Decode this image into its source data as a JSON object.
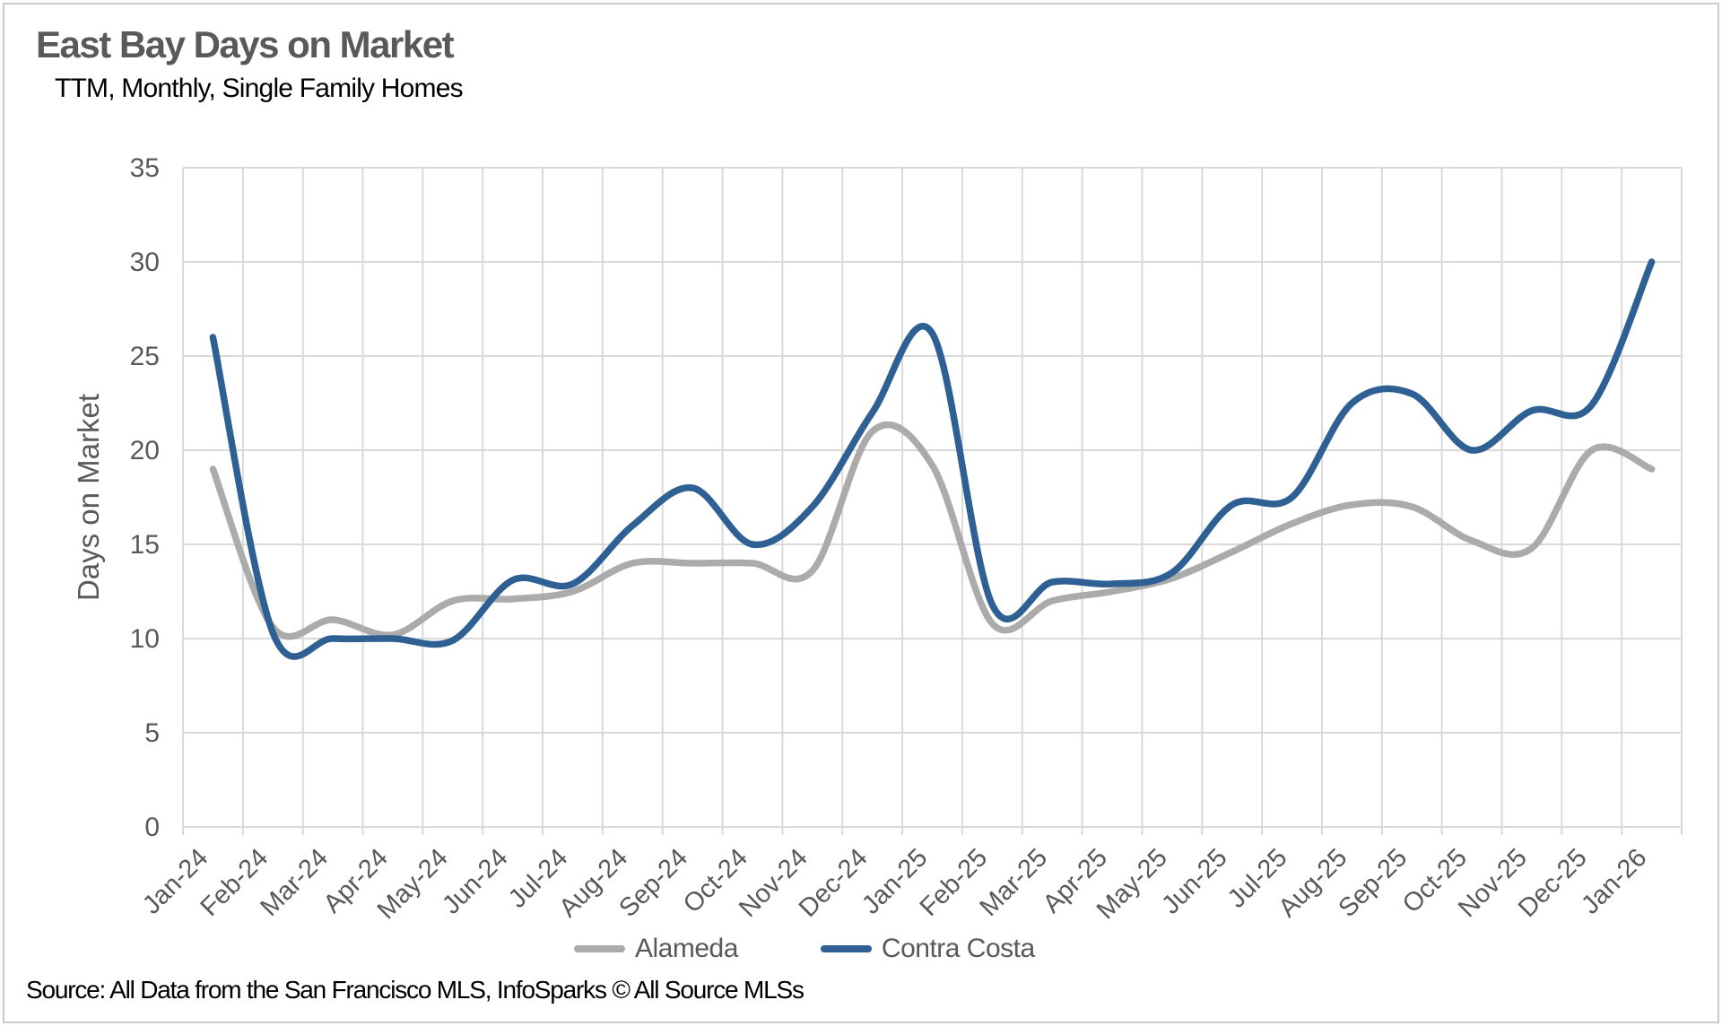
{
  "page": {
    "title": "East Bay Days on Market",
    "subtitle": "TTM, Monthly, Single Family Homes",
    "source": "Source: All Data from the San Francisco MLS, InfoSparks © All Source MLSs"
  },
  "colors": {
    "title_text": "#595959",
    "axis_text": "#595959",
    "gridline": "#d9d9d9",
    "alameda_line": "#ababab",
    "contra_costa_line": "#2e6093",
    "frame_border": "#cbcbcb"
  },
  "chart_data": {
    "type": "line",
    "title": "East Bay Days on Market",
    "subtitle": "TTM, Monthly, Single Family Homes",
    "xlabel": "",
    "ylabel": "Days on Market",
    "ylim": [
      0,
      35
    ],
    "ytick_step": 5,
    "yticks": [
      0,
      5,
      10,
      15,
      20,
      25,
      30,
      35
    ],
    "grid": true,
    "smoothed_lines": true,
    "legend_position": "bottom-center",
    "categories": [
      "Jan-24",
      "Feb-24",
      "Mar-24",
      "Apr-24",
      "May-24",
      "Jun-24",
      "Jul-24",
      "Aug-24",
      "Sep-24",
      "Oct-24",
      "Nov-24",
      "Dec-24",
      "Jan-25",
      "Feb-25",
      "Mar-25",
      "Apr-25",
      "May-25",
      "Jun-25",
      "Jul-25",
      "Aug-25",
      "Sep-25",
      "Oct-25",
      "Nov-25",
      "Dec-25",
      "Jan-26"
    ],
    "series": [
      {
        "name": "Alameda",
        "color": "#ababab",
        "values": [
          19,
          10.6,
          11,
          10.2,
          12,
          12.1,
          12.5,
          14,
          14,
          14,
          13.6,
          21,
          19.2,
          10.8,
          12,
          12.5,
          13.2,
          14.6,
          16.1,
          17.1,
          17,
          15.2,
          14.8,
          20,
          19
        ]
      },
      {
        "name": "Contra Costa",
        "color": "#2e6093",
        "values": [
          26,
          10.3,
          10,
          10,
          9.9,
          13.1,
          12.9,
          16,
          18,
          15,
          17,
          22,
          26.2,
          11.8,
          13,
          12.9,
          13.5,
          17.1,
          17.5,
          22.5,
          23,
          20,
          22.1,
          22.4,
          30
        ]
      }
    ]
  }
}
